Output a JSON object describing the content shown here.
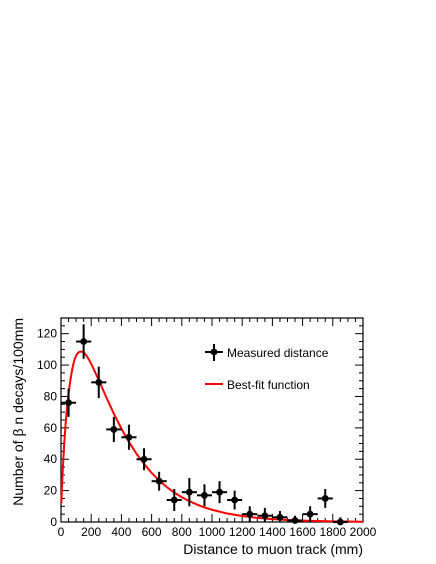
{
  "chart_data": {
    "type": "scatter",
    "xlabel": "Distance to muon track (mm)",
    "ylabel": "Number of β n decays/100mm",
    "xlim": [
      0,
      2000
    ],
    "ylim": [
      0,
      130
    ],
    "x_ticks": [
      0,
      200,
      400,
      600,
      800,
      1000,
      1200,
      1400,
      1600,
      1800,
      2000
    ],
    "y_ticks": [
      0,
      20,
      40,
      60,
      80,
      100,
      120
    ],
    "grid": false,
    "legend_position": "top-right",
    "series": [
      {
        "name": "Measured distance",
        "kind": "points",
        "color": "#000000",
        "x_halfwidth": 50,
        "points": [
          {
            "x": 50,
            "y": 76,
            "err": 9
          },
          {
            "x": 150,
            "y": 115,
            "err": 11
          },
          {
            "x": 250,
            "y": 89,
            "err": 10
          },
          {
            "x": 350,
            "y": 59,
            "err": 8
          },
          {
            "x": 450,
            "y": 54,
            "err": 8
          },
          {
            "x": 550,
            "y": 40,
            "err": 7
          },
          {
            "x": 650,
            "y": 26,
            "err": 6
          },
          {
            "x": 750,
            "y": 14,
            "err": 7
          },
          {
            "x": 850,
            "y": 19,
            "err": 9
          },
          {
            "x": 950,
            "y": 17,
            "err": 7
          },
          {
            "x": 1050,
            "y": 19,
            "err": 7
          },
          {
            "x": 1150,
            "y": 14,
            "err": 6
          },
          {
            "x": 1250,
            "y": 5,
            "err": 5
          },
          {
            "x": 1350,
            "y": 4,
            "err": 5
          },
          {
            "x": 1450,
            "y": 3,
            "err": 4
          },
          {
            "x": 1550,
            "y": 1,
            "err": 3
          },
          {
            "x": 1650,
            "y": 5,
            "err": 5
          },
          {
            "x": 1750,
            "y": 15,
            "err": 6
          },
          {
            "x": 1850,
            "y": 0,
            "err": 3
          }
        ]
      },
      {
        "name": "Best-fit function",
        "kind": "line",
        "color": "#ff0000",
        "x": [
          2,
          10,
          20,
          30,
          40,
          50,
          60,
          70,
          80,
          90,
          100,
          110,
          120,
          130,
          140,
          150,
          160,
          170,
          180,
          190,
          200,
          250,
          300,
          350,
          400,
          450,
          500,
          550,
          600,
          650,
          700,
          750,
          800,
          850,
          900,
          950,
          1000,
          1100,
          1200,
          1300,
          1400,
          1500,
          1600,
          1700,
          1800,
          1900,
          2000
        ],
        "y": [
          12,
          30,
          48,
          62,
          73,
          82,
          89,
          95,
          100,
          103.5,
          106,
          107.5,
          108.3,
          108.6,
          108.5,
          108,
          107,
          105.8,
          104.3,
          102.6,
          100.8,
          90.5,
          79.5,
          69,
          59.5,
          51,
          43.5,
          37,
          31.3,
          26.5,
          22.3,
          18.8,
          15.8,
          13.3,
          11.1,
          9.3,
          7.8,
          5.4,
          3.8,
          2.6,
          1.8,
          1.3,
          0.9,
          0.6,
          0.4,
          0.3,
          0.2
        ]
      }
    ]
  }
}
